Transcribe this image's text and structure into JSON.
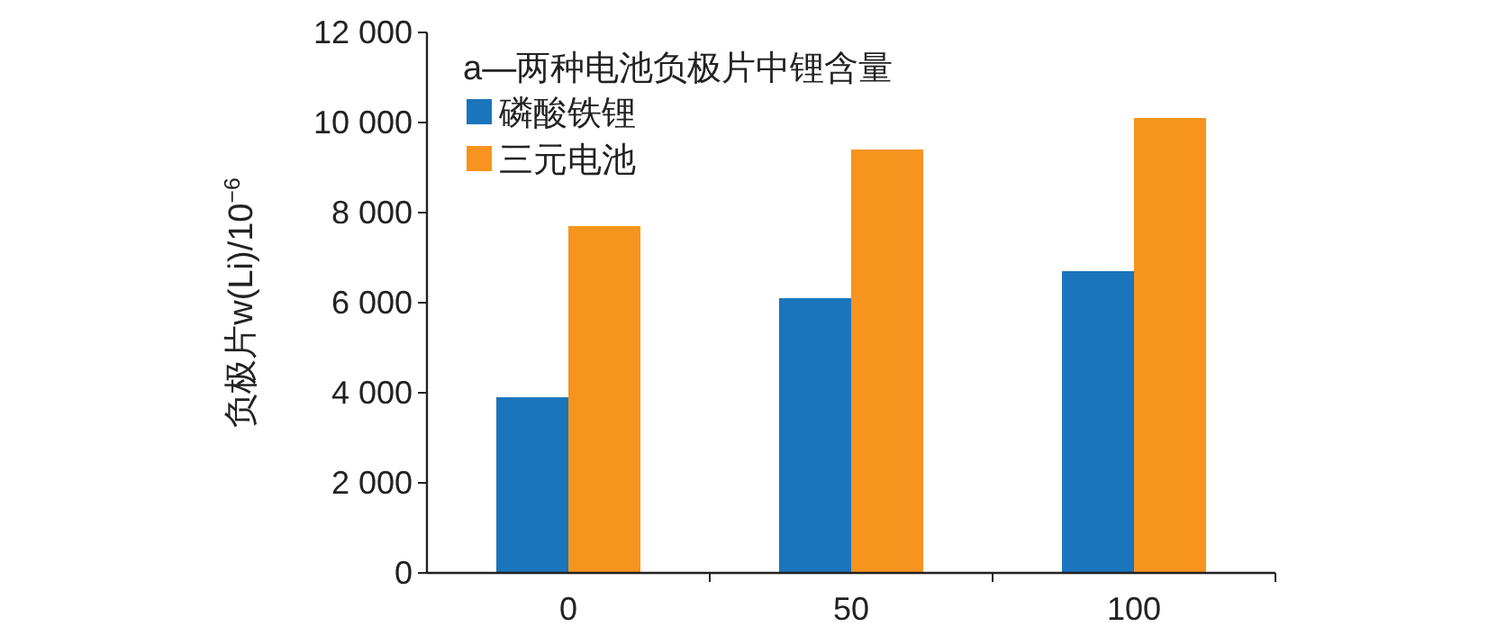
{
  "chart_data": {
    "type": "bar",
    "title": "a—两种电池负极片中锂含量",
    "ylabel": "负极片w(Li)/10$^{−6}$",
    "categories": [
      "0",
      "50",
      "100"
    ],
    "series": [
      {
        "name": "磷酸铁锂",
        "color": "#1b75bc",
        "values": [
          3900,
          6100,
          6700
        ]
      },
      {
        "name": "三元电池",
        "color": "#f7941d",
        "values": [
          7700,
          9400,
          10100
        ]
      }
    ],
    "ylim": [
      0,
      12000
    ],
    "yticks": [
      0,
      {
        "value": 2000,
        "label": "2 000"
      },
      {
        "value": 4000,
        "label": "4 000"
      },
      {
        "value": 6000,
        "label": "6 000"
      },
      {
        "value": 8000,
        "label": "8 000"
      },
      {
        "value": 10000,
        "label": "10 000"
      },
      {
        "value": 12000,
        "label": "12 000"
      }
    ],
    "grid": false,
    "legend": "top left"
  }
}
